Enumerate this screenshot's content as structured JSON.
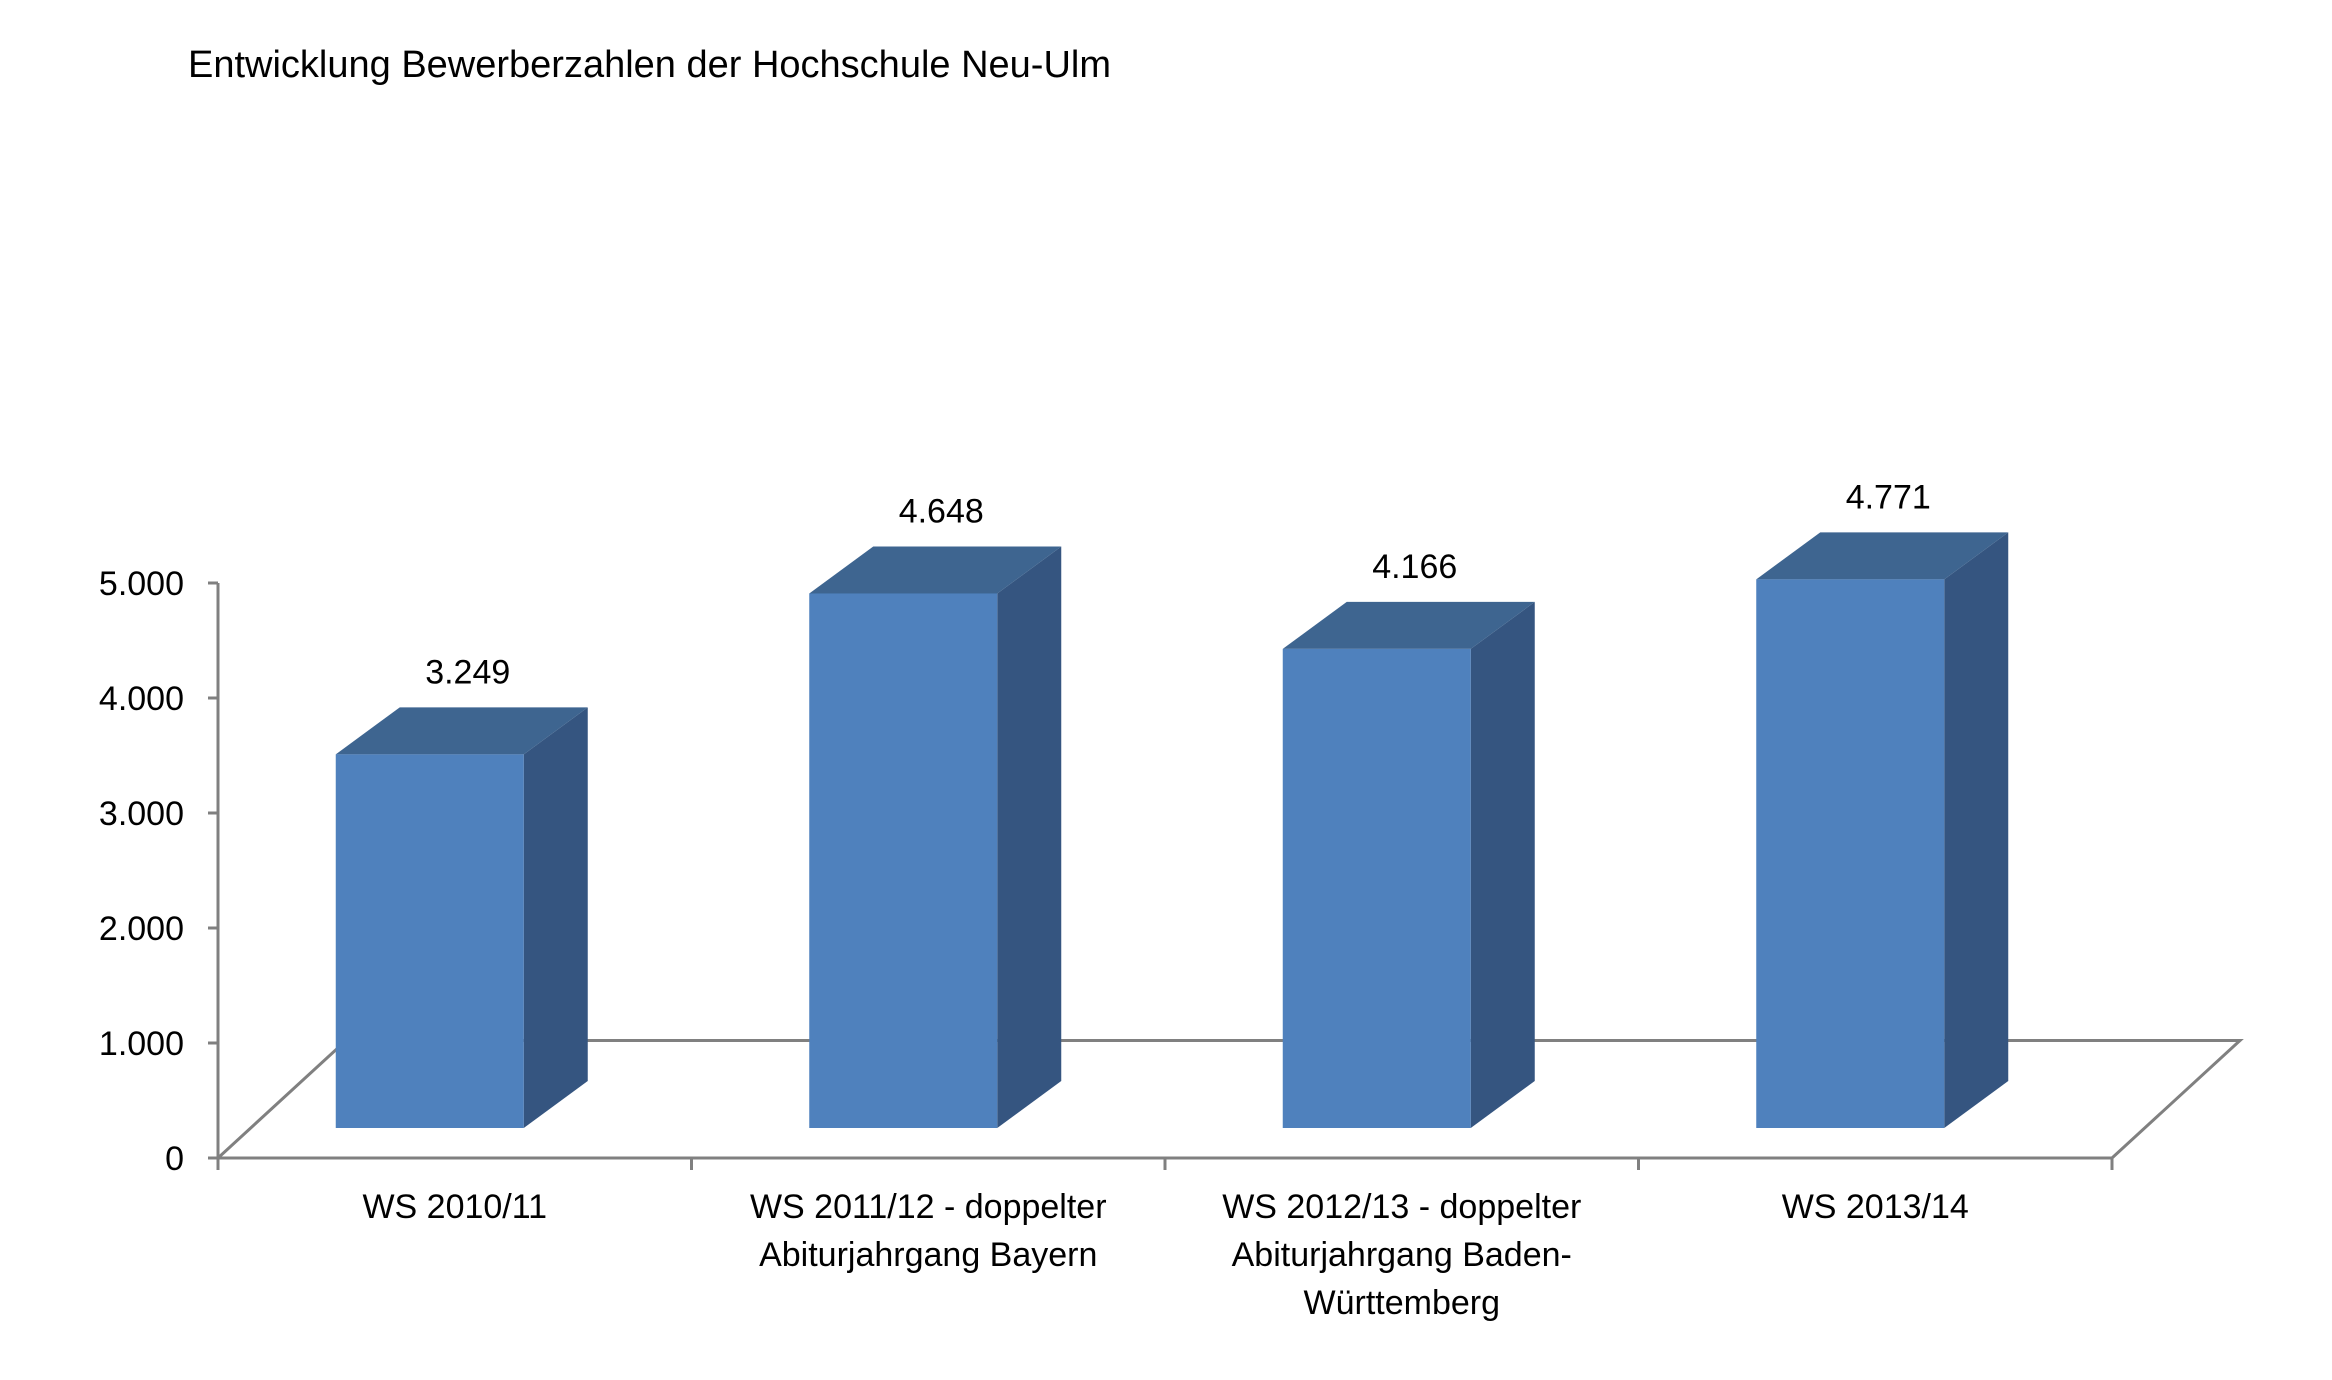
{
  "chart_data": {
    "type": "bar",
    "style": "3d-column",
    "title": "Entwicklung Bewerberzahlen der Hochschule Neu-Ulm",
    "xlabel": "",
    "ylabel": "",
    "categories": [
      [
        "WS 2010/11"
      ],
      [
        "WS 2011/12 - doppelter",
        "Abiturjahrgang Bayern"
      ],
      [
        "WS 2012/13 - doppelter",
        "Abiturjahrgang Baden-",
        "Württemberg"
      ],
      [
        "WS 2013/14"
      ]
    ],
    "values": [
      3249,
      4648,
      4166,
      4771
    ],
    "data_labels": [
      "3.249",
      "4.648",
      "4.166",
      "4.771"
    ],
    "ylim": [
      0,
      5000
    ],
    "yticks": [
      0,
      1000,
      2000,
      3000,
      4000,
      5000
    ],
    "ytick_labels": [
      "0",
      "1.000",
      "2.000",
      "3.000",
      "4.000",
      "5.000"
    ],
    "grid": false,
    "legend": "none",
    "colors": {
      "bar_front": "#4F81BD",
      "bar_side": "#355580",
      "bar_top": "#3E6590",
      "axis": "#808080",
      "text": "#000000"
    }
  }
}
